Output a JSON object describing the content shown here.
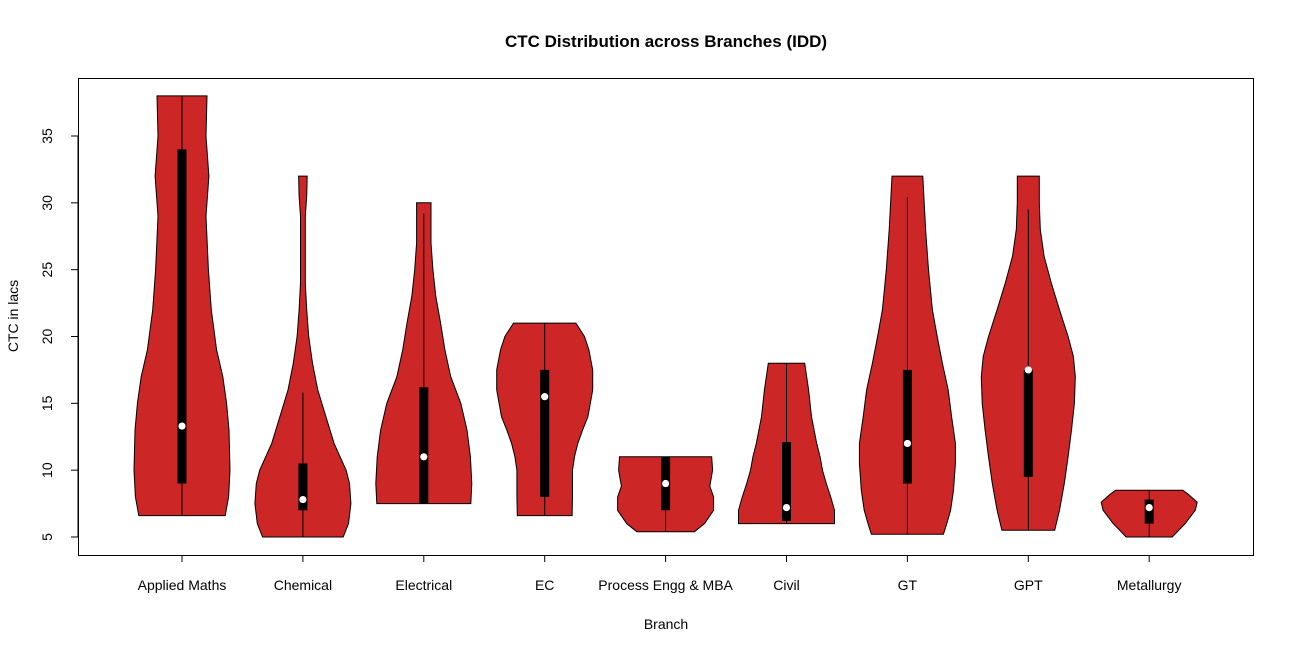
{
  "chart_data": {
    "type": "violin",
    "title": "CTC Distribution across Branches (IDD)",
    "xlabel": "Branch",
    "ylabel": "CTC in lacs",
    "ylim": [
      3.6,
      40.3
    ],
    "yticks": [
      5,
      10,
      15,
      20,
      25,
      30,
      35
    ],
    "grid": false,
    "colors": {
      "violin_fill": "#CD2626",
      "box": "#000000",
      "median": "#FFFFFF"
    },
    "categories": [
      "Applied Maths",
      "Chemical",
      "Electrical",
      "EC",
      "Process Engg & MBA",
      "Civil",
      "GT",
      "GPT",
      "Metallurgy"
    ],
    "series": [
      {
        "category": "Applied Maths",
        "min": 6.6,
        "max": 38,
        "q1": 9,
        "median": 13.3,
        "q3": 34,
        "whisker_low": 6.6,
        "whisker_high": 38,
        "density": [
          [
            6.6,
            0.9
          ],
          [
            8,
            0.97
          ],
          [
            10,
            1
          ],
          [
            13,
            0.98
          ],
          [
            15,
            0.93
          ],
          [
            17,
            0.85
          ],
          [
            19,
            0.72
          ],
          [
            22,
            0.61
          ],
          [
            25,
            0.55
          ],
          [
            29,
            0.5
          ],
          [
            32,
            0.56
          ],
          [
            35,
            0.5
          ],
          [
            38,
            0.52
          ]
        ]
      },
      {
        "category": "Chemical",
        "min": 5,
        "max": 32,
        "q1": 7,
        "median": 7.8,
        "q3": 10.5,
        "whisker_low": 5,
        "whisker_high": 15.8,
        "density": [
          [
            5,
            0.84
          ],
          [
            6,
            0.95
          ],
          [
            7.5,
            1
          ],
          [
            9,
            0.97
          ],
          [
            10,
            0.9
          ],
          [
            12,
            0.65
          ],
          [
            14,
            0.48
          ],
          [
            16,
            0.31
          ],
          [
            18,
            0.2
          ],
          [
            20,
            0.12
          ],
          [
            22,
            0.08
          ],
          [
            24,
            0.05
          ],
          [
            29,
            0.05
          ],
          [
            30.5,
            0.08
          ],
          [
            32,
            0.09
          ]
        ]
      },
      {
        "category": "Electrical",
        "min": 7.5,
        "max": 30,
        "q1": 7.5,
        "median": 11,
        "q3": 16.2,
        "whisker_low": 7.5,
        "whisker_high": 29.2,
        "density": [
          [
            7.5,
            0.98
          ],
          [
            9,
            1
          ],
          [
            11,
            0.97
          ],
          [
            13,
            0.9
          ],
          [
            15,
            0.77
          ],
          [
            17,
            0.56
          ],
          [
            19,
            0.44
          ],
          [
            21,
            0.35
          ],
          [
            23,
            0.25
          ],
          [
            25,
            0.19
          ],
          [
            27,
            0.15
          ],
          [
            30,
            0.15
          ]
        ]
      },
      {
        "category": "EC",
        "min": 6.6,
        "max": 21,
        "q1": 8,
        "median": 15.5,
        "q3": 17.5,
        "whisker_low": 6.6,
        "whisker_high": 21,
        "density": [
          [
            6.6,
            0.57
          ],
          [
            8,
            0.58
          ],
          [
            10,
            0.58
          ],
          [
            11,
            0.62
          ],
          [
            12,
            0.69
          ],
          [
            13,
            0.79
          ],
          [
            14,
            0.9
          ],
          [
            16,
            1
          ],
          [
            17.5,
            1
          ],
          [
            19,
            0.92
          ],
          [
            20,
            0.83
          ],
          [
            21,
            0.65
          ]
        ]
      },
      {
        "category": "Process Engg & MBA",
        "min": 5.4,
        "max": 11,
        "q1": 7,
        "median": 9,
        "q3": 11,
        "whisker_low": 5.4,
        "whisker_high": 11,
        "density": [
          [
            5.4,
            0.6
          ],
          [
            6,
            0.81
          ],
          [
            7,
            1
          ],
          [
            8,
            1
          ],
          [
            8.8,
            0.92
          ],
          [
            10,
            0.98
          ],
          [
            11,
            0.96
          ]
        ]
      },
      {
        "category": "Civil",
        "min": 6,
        "max": 18,
        "q1": 6.2,
        "median": 7.2,
        "q3": 12.1,
        "whisker_low": 6,
        "whisker_high": 18,
        "density": [
          [
            6,
            1
          ],
          [
            7,
            1
          ],
          [
            8,
            0.92
          ],
          [
            9,
            0.83
          ],
          [
            10,
            0.75
          ],
          [
            11,
            0.7
          ],
          [
            12,
            0.63
          ],
          [
            14,
            0.52
          ],
          [
            16,
            0.46
          ],
          [
            18,
            0.38
          ]
        ]
      },
      {
        "category": "GT",
        "min": 5.2,
        "max": 32,
        "q1": 9,
        "median": 12,
        "q3": 17.5,
        "whisker_low": 5.2,
        "whisker_high": 30.4,
        "density": [
          [
            5.2,
            0.75
          ],
          [
            6,
            0.82
          ],
          [
            7,
            0.9
          ],
          [
            8.5,
            0.96
          ],
          [
            10.5,
            1
          ],
          [
            12,
            1
          ],
          [
            14,
            0.92
          ],
          [
            16,
            0.85
          ],
          [
            18,
            0.73
          ],
          [
            20,
            0.62
          ],
          [
            22,
            0.52
          ],
          [
            25,
            0.44
          ],
          [
            28,
            0.38
          ],
          [
            30,
            0.35
          ],
          [
            32,
            0.32
          ]
        ]
      },
      {
        "category": "GPT",
        "min": 5.5,
        "max": 32,
        "q1": 9.5,
        "median": 17.5,
        "q3": 17.5,
        "whisker_low": 5.5,
        "whisker_high": 29.5,
        "density": [
          [
            5.5,
            0.55
          ],
          [
            7,
            0.65
          ],
          [
            9,
            0.75
          ],
          [
            11,
            0.83
          ],
          [
            13,
            0.9
          ],
          [
            15,
            0.96
          ],
          [
            17,
            0.98
          ],
          [
            18.5,
            0.94
          ],
          [
            20,
            0.83
          ],
          [
            22,
            0.65
          ],
          [
            24,
            0.48
          ],
          [
            26,
            0.33
          ],
          [
            28,
            0.25
          ],
          [
            30,
            0.23
          ],
          [
            32,
            0.23
          ]
        ]
      },
      {
        "category": "Metallurgy",
        "min": 5,
        "max": 8.5,
        "q1": 6,
        "median": 7.2,
        "q3": 7.8,
        "whisker_low": 5,
        "whisker_high": 8.5,
        "density": [
          [
            5,
            0.48
          ],
          [
            6,
            0.75
          ],
          [
            7,
            0.96
          ],
          [
            7.6,
            1
          ],
          [
            8.2,
            0.81
          ],
          [
            8.5,
            0.7
          ]
        ]
      }
    ]
  }
}
